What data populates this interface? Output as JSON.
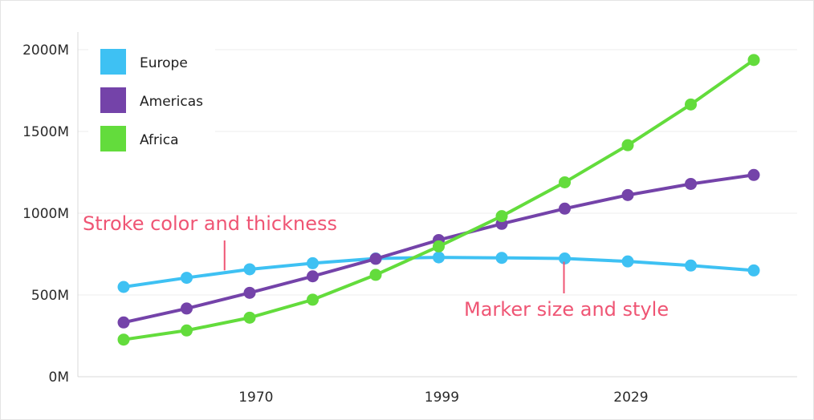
{
  "chart_data": {
    "type": "line",
    "x": [
      1950,
      1960,
      1970,
      1980,
      1990,
      2000,
      2010,
      2020,
      2030,
      2040,
      2050
    ],
    "x_tick_labels": [
      "1970",
      "1999",
      "2029"
    ],
    "y_tick_labels": [
      "0M",
      "500M",
      "1000M",
      "1500M",
      "2000M"
    ],
    "ylim": [
      0,
      2000
    ],
    "grid": true,
    "legend_position": "top-left",
    "series": [
      {
        "name": "Europe",
        "color": "#3ec1f3",
        "values": [
          549,
          605,
          657,
          694,
          723,
          730,
          727,
          723,
          705,
          680,
          650
        ]
      },
      {
        "name": "Americas",
        "color": "#7443a9",
        "values": [
          332,
          417,
          513,
          614,
          721,
          836,
          935,
          1028,
          1111,
          1179,
          1234
        ]
      },
      {
        "name": "Africa",
        "color": "#63dc3c",
        "values": [
          227,
          283,
          361,
          471,
          623,
          797,
          982,
          1189,
          1416,
          1665,
          1937
        ]
      }
    ],
    "annotations": [
      {
        "text": "Stroke color and thickness",
        "series": "Europe",
        "x": 1965
      },
      {
        "text": "Marker size and style",
        "series": "Europe",
        "x": 2020
      }
    ]
  },
  "colors": {
    "annotation": "#ef5574",
    "grid": "#ececec",
    "axis": "#d9d9d9"
  }
}
